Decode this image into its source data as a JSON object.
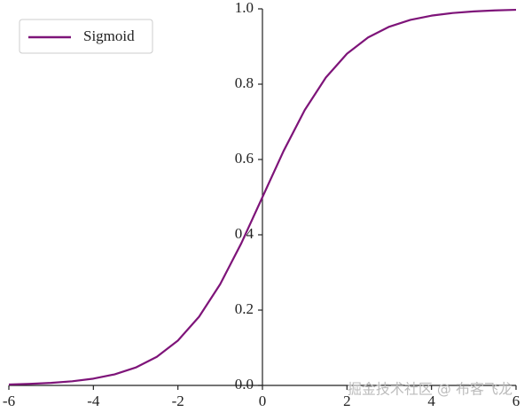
{
  "chart_data": {
    "type": "line",
    "x": [
      -6,
      -5.5,
      -5,
      -4.5,
      -4,
      -3.5,
      -3,
      -2.5,
      -2,
      -1.5,
      -1,
      -0.5,
      0,
      0.5,
      1,
      1.5,
      2,
      2.5,
      3,
      3.5,
      4,
      4.5,
      5,
      5.5,
      6
    ],
    "series": [
      {
        "name": "Sigmoid",
        "color": "#7e1479",
        "values": [
          0.0025,
          0.0041,
          0.0067,
          0.011,
          0.018,
          0.0293,
          0.0474,
          0.0759,
          0.1192,
          0.1824,
          0.2689,
          0.3775,
          0.5,
          0.6225,
          0.7311,
          0.8176,
          0.8808,
          0.9241,
          0.9526,
          0.9707,
          0.982,
          0.989,
          0.9933,
          0.9959,
          0.9975
        ]
      }
    ],
    "xlim": [
      -6,
      6
    ],
    "xticks": [
      -6,
      -4,
      -2,
      0,
      2,
      4,
      6
    ],
    "ylim": [
      0,
      1
    ],
    "yticks": [
      {
        "value": 0,
        "label": "0.0"
      },
      0.2,
      0.4,
      0.6,
      0.8,
      {
        "value": 1,
        "label": "1.0"
      }
    ],
    "legend": "upper left",
    "watermark": "掘金技术社区 @ 布客飞龙"
  }
}
